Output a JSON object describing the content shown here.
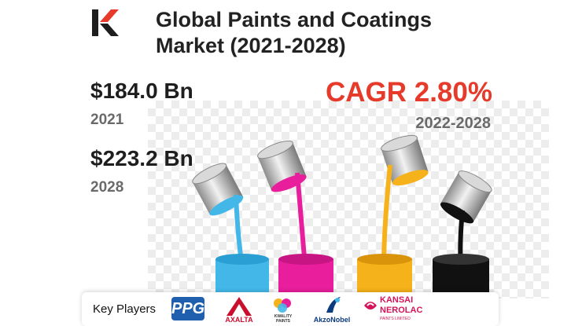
{
  "header": {
    "title_line1": "Global Paints and Coatings",
    "title_line2": "Market (2021-2028)"
  },
  "stats": [
    {
      "value": "$184.0 Bn",
      "year": "2021"
    },
    {
      "value": "$223.2 Bn",
      "year": "2028"
    }
  ],
  "cagr": {
    "label": "CAGR 2.80%",
    "years": "2022-2028"
  },
  "colors": {
    "accent": "#e63a2a",
    "cyan": "#43b8e8",
    "magenta": "#e91e9c",
    "yellow": "#f6b21a",
    "black": "#111111",
    "brand_logo": "#e63a2a"
  },
  "key_players": {
    "label": "Key Players",
    "brands": [
      {
        "name": "PPG"
      },
      {
        "name": "AXALTA"
      },
      {
        "name": "KWALITY PAINTS"
      },
      {
        "name": "AkzoNobel"
      },
      {
        "name_line1": "KANSAI",
        "name_line2": "NEROLAC",
        "sub": "PAINTS LIMITED"
      }
    ]
  }
}
